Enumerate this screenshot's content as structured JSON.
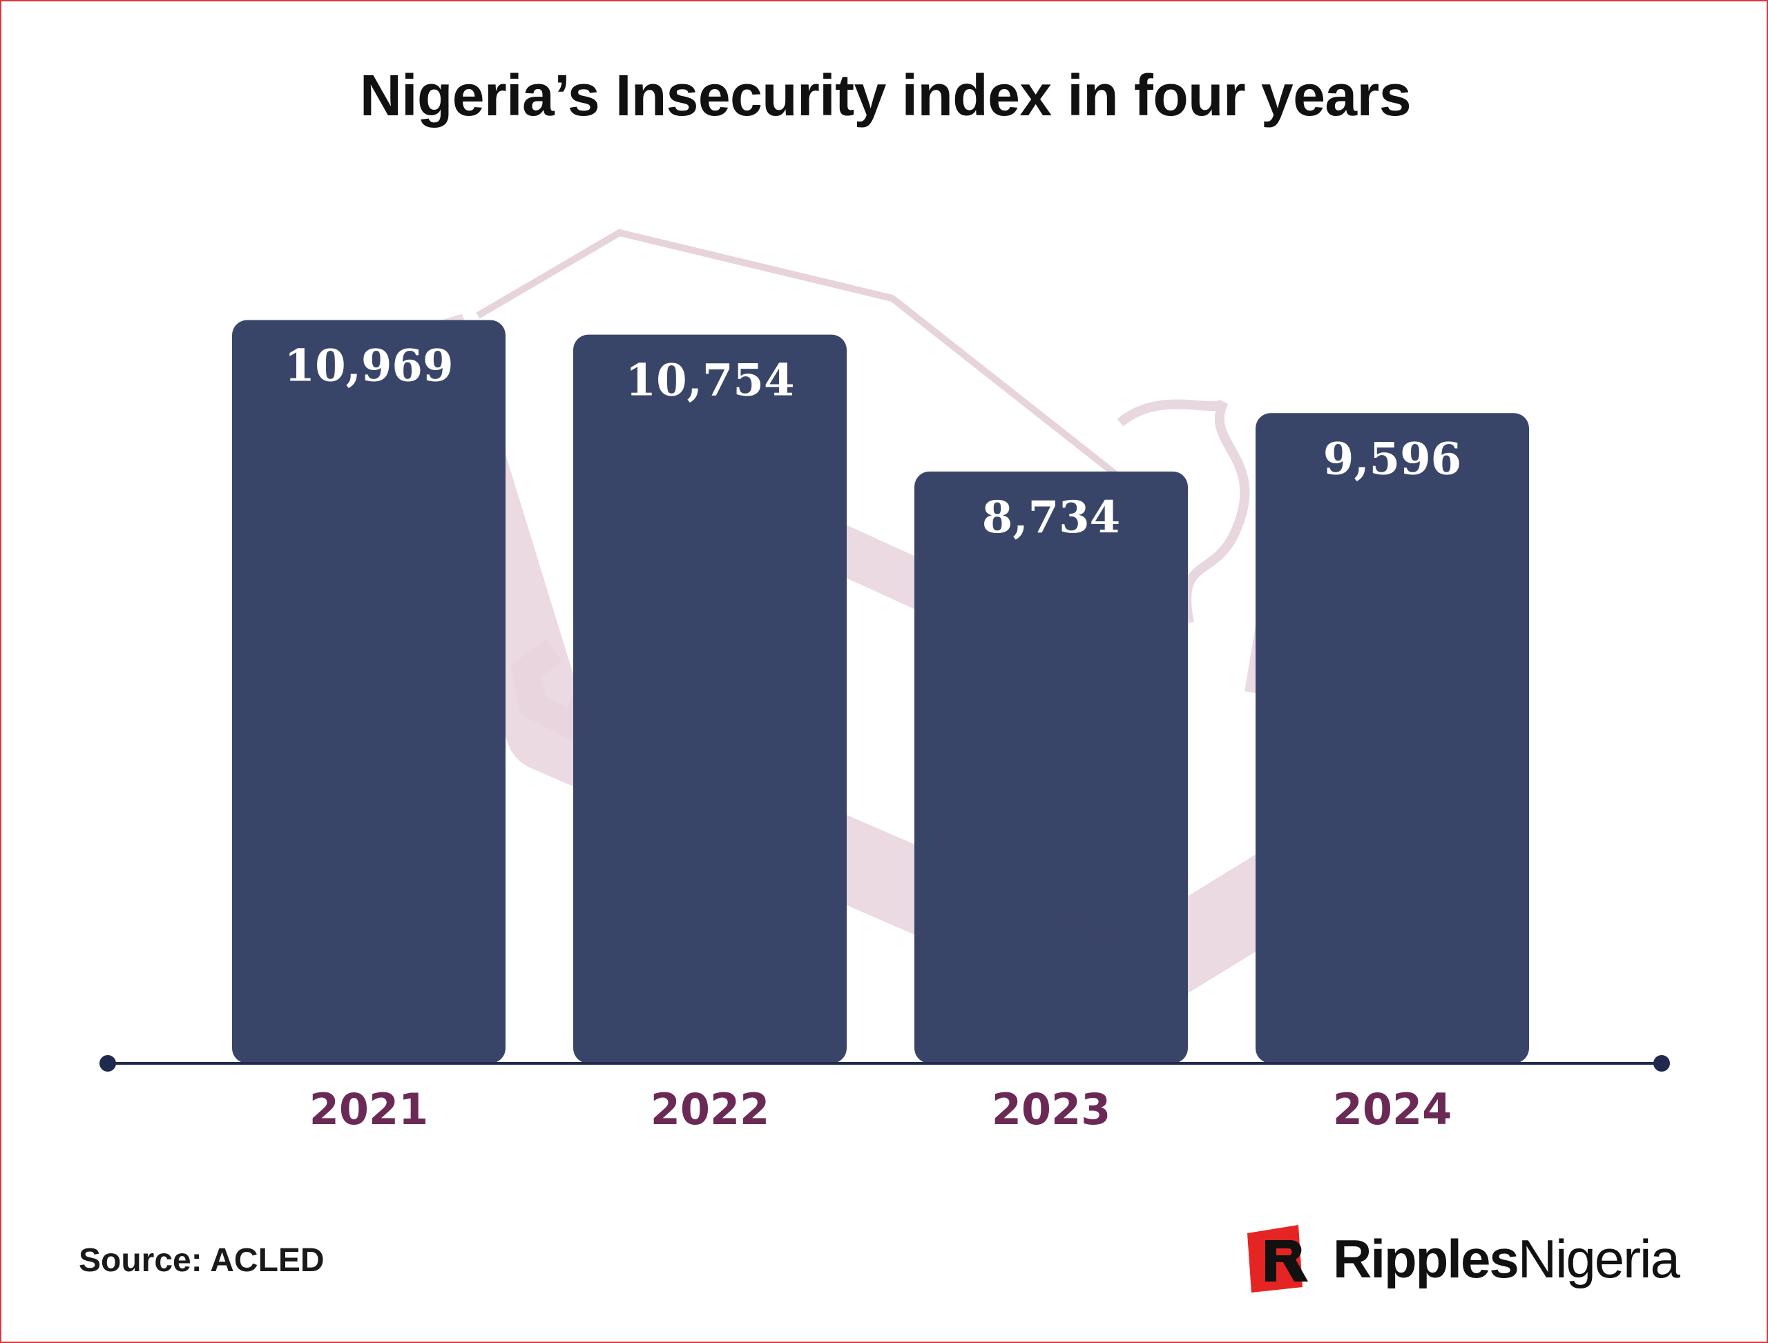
{
  "chart_data": {
    "type": "bar",
    "title": "Nigeria’s Insecurity index in four years",
    "categories": [
      "2021",
      "2022",
      "2023",
      "2024"
    ],
    "values": [
      10969,
      10754,
      8734,
      9596
    ],
    "value_labels": [
      "10,969",
      "10,754",
      "8,734",
      "9,596"
    ],
    "xlabel": "",
    "ylabel": "",
    "ylim": [
      0,
      11800
    ],
    "grid": false,
    "legend": "none"
  },
  "footer": {
    "source": "Source: ACLED",
    "brand_part1": "Ripples",
    "brand_part2": "Nigeria"
  },
  "colors": {
    "bar": "#354165",
    "axis": "#1f2a4e",
    "category_text": "#6b2a55",
    "watermark": "#e7d3dc",
    "brand_red": "#e52523",
    "border": "#d8383f"
  },
  "icons": {
    "watermark": "ripples-nigeria-logo-watermark",
    "brand_mark": "ripples-r-logo-icon"
  }
}
